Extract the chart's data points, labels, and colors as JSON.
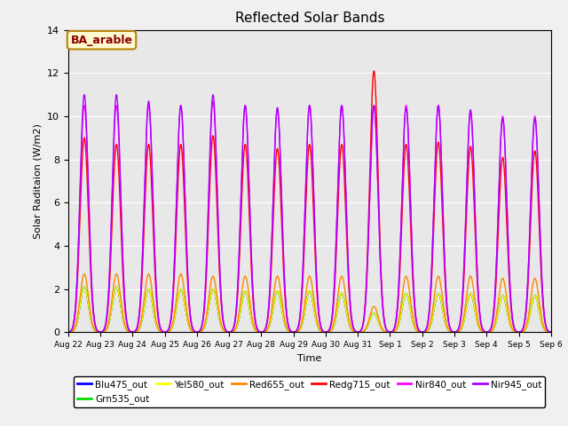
{
  "title": "Reflected Solar Bands",
  "xlabel": "Time",
  "ylabel": "Solar Raditaion (W/m2)",
  "annotation": "BA_arable",
  "ylim": [
    0,
    14
  ],
  "xlim": [
    0,
    15
  ],
  "background_color": "#e8e8e8",
  "num_days": 15,
  "bands": [
    {
      "name": "Blu475_out",
      "color": "#0000ff",
      "linewidth": 1.0
    },
    {
      "name": "Grn535_out",
      "color": "#00dd00",
      "linewidth": 1.0
    },
    {
      "name": "Yel580_out",
      "color": "#ffff00",
      "linewidth": 1.0
    },
    {
      "name": "Red655_out",
      "color": "#ff8800",
      "linewidth": 1.0
    },
    {
      "name": "Redg715_out",
      "color": "#ff0000",
      "linewidth": 1.0
    },
    {
      "name": "Nir840_out",
      "color": "#ff00ff",
      "linewidth": 1.0
    },
    {
      "name": "Nir945_out",
      "color": "#aa00ff",
      "linewidth": 1.0
    }
  ],
  "xtick_labels": [
    "Aug 22",
    "Aug 23",
    "Aug 24",
    "Aug 25",
    "Aug 26",
    "Aug 27",
    "Aug 28",
    "Aug 29",
    "Aug 30",
    "Aug 31",
    "Sep 1",
    "Sep 2",
    "Sep 3",
    "Sep 4",
    "Sep 5",
    "Sep 6"
  ],
  "base_peaks": {
    "Blu475_out": [
      2.1,
      2.1,
      2.0,
      2.0,
      2.0,
      1.9,
      1.9,
      1.9,
      1.8,
      0.9,
      1.8,
      1.8,
      1.8,
      1.7,
      1.7
    ],
    "Grn535_out": [
      2.1,
      2.1,
      2.0,
      2.0,
      2.0,
      1.9,
      1.9,
      1.9,
      1.8,
      0.9,
      1.8,
      1.8,
      1.8,
      1.7,
      1.7
    ],
    "Yel580_out": [
      2.1,
      2.1,
      2.0,
      2.0,
      2.0,
      1.9,
      1.9,
      1.9,
      1.8,
      0.9,
      1.8,
      1.8,
      1.8,
      1.7,
      1.7
    ],
    "Red655_out": [
      2.7,
      2.7,
      2.7,
      2.7,
      2.6,
      2.6,
      2.6,
      2.6,
      2.6,
      1.2,
      2.6,
      2.6,
      2.6,
      2.5,
      2.5
    ],
    "Redg715_out": [
      9.0,
      8.7,
      8.7,
      8.7,
      9.1,
      8.7,
      8.5,
      8.7,
      8.7,
      12.1,
      8.7,
      8.8,
      8.6,
      8.1,
      8.4
    ],
    "Nir840_out": [
      10.5,
      10.5,
      10.5,
      10.5,
      10.7,
      10.5,
      10.3,
      10.5,
      10.5,
      10.5,
      10.5,
      10.5,
      10.2,
      10.0,
      10.0
    ],
    "Nir945_out": [
      11.0,
      11.0,
      10.7,
      10.5,
      11.0,
      10.5,
      10.4,
      10.5,
      10.5,
      10.5,
      10.4,
      10.5,
      10.3,
      9.9,
      9.9
    ]
  },
  "fig_width": 6.4,
  "fig_height": 4.8,
  "dpi": 100
}
